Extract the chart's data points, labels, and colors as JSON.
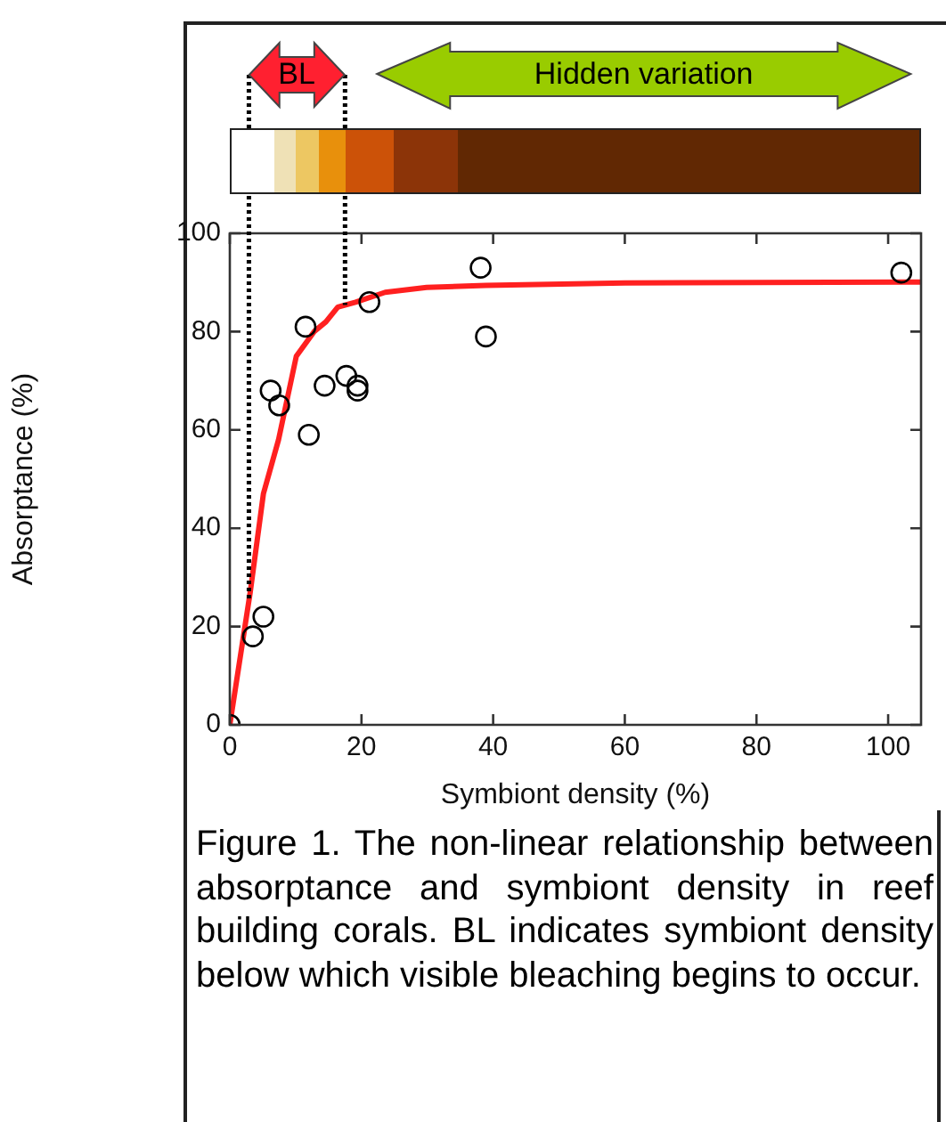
{
  "chart_data": {
    "type": "scatter",
    "xlabel": "Symbiont density (%)",
    "ylabel": "Absorptance (%)",
    "xlim": [
      0,
      105
    ],
    "xticks": [
      0,
      20,
      40,
      60,
      80,
      100
    ],
    "ylim": [
      0,
      100
    ],
    "yticks": [
      0,
      20,
      40,
      60,
      80,
      100
    ],
    "grid": false,
    "legend": false,
    "marker": "circle",
    "annotations": [
      "BL",
      "Hidden variation",
      "Figure 1. The non-linear relationship between absorptance and symbiont density in reef building corals. BL indicates symbiont density below which visible bleaching begins to occur."
    ],
    "ref_lines": [
      {
        "axis": "x",
        "value": 2.9,
        "line_style": "dotted",
        "color": "#000000"
      },
      {
        "axis": "x",
        "value": 17.5,
        "line_style": "dotted",
        "color": "#000000"
      }
    ],
    "series": [
      {
        "color": "#000000",
        "x": [
          0,
          3.5,
          5.1,
          6.2,
          7.5,
          11.5,
          12,
          14.4,
          17.7,
          19.4,
          19.4,
          21.2,
          38.1,
          38.9,
          102
        ],
        "values": [
          0,
          18,
          22,
          68,
          65,
          81,
          59,
          69,
          71,
          69,
          68,
          86,
          93,
          79,
          92
        ]
      },
      {
        "type": "line",
        "color": "#ff2020",
        "marker": "none",
        "x": [
          0,
          3.1,
          5.1,
          7.4,
          10.1,
          12.8,
          14.6,
          16.4,
          19.1,
          23.6,
          29.9,
          38.9,
          60,
          80,
          105
        ],
        "values": [
          0,
          27,
          47,
          58,
          75,
          80,
          82,
          85,
          86,
          88,
          89,
          89.4,
          89.9,
          90,
          90.1
        ]
      }
    ]
  }
}
